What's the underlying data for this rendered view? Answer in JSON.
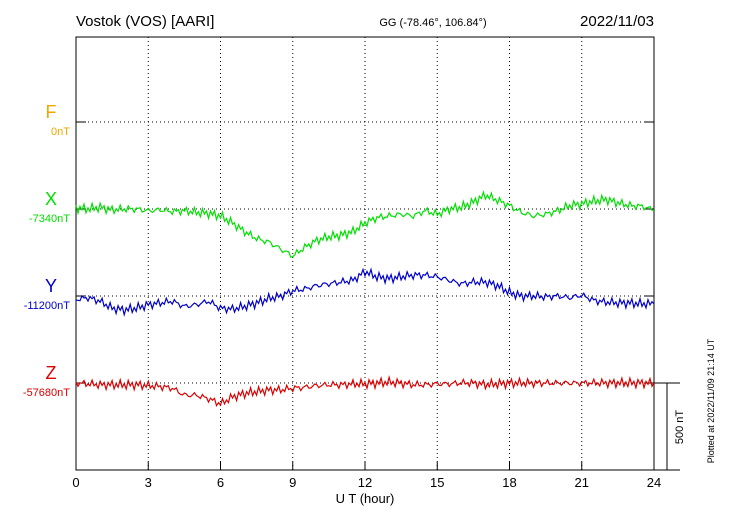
{
  "header": {
    "station": "Vostok (VOS)  [AARI]",
    "coords": "GG (-78.46°, 106.84°)",
    "date": "2022/11/03"
  },
  "side_note": "Plotted at 2022/11/09 21:14 UT",
  "scale_label": "500 nT",
  "colors": {
    "F": "#f0a800",
    "X": "#00e000",
    "Y": "#0000cc",
    "Z": "#dd0000",
    "grid": "#000000"
  },
  "chart_data": {
    "type": "line",
    "xlabel": "U T (hour)",
    "xlim": [
      0,
      24
    ],
    "xticks": [
      "0",
      "3",
      "6",
      "9",
      "12",
      "15",
      "18",
      "21",
      "24"
    ],
    "ylabel": "",
    "scale_nT": 500,
    "series": [
      {
        "name": "F",
        "baseline_label": "0nT",
        "baseline": 0,
        "x": [],
        "y": []
      },
      {
        "name": "X",
        "baseline_label": "-7340nT",
        "baseline": -7340,
        "x": [
          0,
          0.5,
          1,
          1.5,
          2,
          2.5,
          3,
          3.5,
          4,
          4.5,
          5,
          5.5,
          6,
          6.5,
          7,
          7.5,
          8,
          8.5,
          9,
          9.5,
          10,
          10.5,
          11,
          11.5,
          12,
          12.5,
          13,
          13.5,
          14,
          14.5,
          15,
          15.5,
          16,
          16.5,
          17,
          17.5,
          18,
          18.5,
          19,
          19.5,
          20,
          20.5,
          21,
          21.5,
          22,
          22.5,
          23,
          23.5,
          24
        ],
        "y": [
          -7335,
          -7340,
          -7330,
          -7345,
          -7340,
          -7340,
          -7350,
          -7345,
          -7355,
          -7350,
          -7360,
          -7365,
          -7380,
          -7420,
          -7470,
          -7510,
          -7530,
          -7570,
          -7610,
          -7560,
          -7520,
          -7500,
          -7490,
          -7470,
          -7420,
          -7390,
          -7380,
          -7370,
          -7380,
          -7350,
          -7370,
          -7340,
          -7330,
          -7300,
          -7260,
          -7290,
          -7320,
          -7360,
          -7380,
          -7370,
          -7350,
          -7320,
          -7310,
          -7295,
          -7285,
          -7305,
          -7320,
          -7325,
          -7345
        ]
      },
      {
        "name": "Y",
        "baseline_label": "-11200nT",
        "baseline": -11200,
        "x": [
          0,
          0.5,
          1,
          1.5,
          2,
          2.5,
          3,
          3.5,
          4,
          4.5,
          5,
          5.5,
          6,
          6.5,
          7,
          7.5,
          8,
          8.5,
          9,
          9.5,
          10,
          10.5,
          11,
          11.5,
          12,
          12.5,
          13,
          13.5,
          14,
          14.5,
          15,
          15.5,
          16,
          16.5,
          17,
          17.5,
          18,
          18.5,
          19,
          19.5,
          20,
          20.5,
          21,
          21.5,
          22,
          22.5,
          23,
          23.5,
          24
        ],
        "y": [
          -11220,
          -11210,
          -11230,
          -11270,
          -11280,
          -11270,
          -11250,
          -11240,
          -11230,
          -11260,
          -11250,
          -11230,
          -11270,
          -11275,
          -11260,
          -11240,
          -11215,
          -11200,
          -11170,
          -11160,
          -11140,
          -11130,
          -11120,
          -11110,
          -11060,
          -11090,
          -11100,
          -11090,
          -11080,
          -11080,
          -11090,
          -11110,
          -11130,
          -11120,
          -11120,
          -11140,
          -11180,
          -11200,
          -11200,
          -11205,
          -11200,
          -11210,
          -11195,
          -11225,
          -11235,
          -11240,
          -11240,
          -11245,
          -11245
        ]
      },
      {
        "name": "Z",
        "baseline_label": "-57680nT",
        "baseline": -57680,
        "x": [
          0,
          0.5,
          1,
          1.5,
          2,
          2.5,
          3,
          3.5,
          4,
          4.5,
          5,
          5.5,
          6,
          6.5,
          7,
          7.5,
          8,
          8.5,
          9,
          9.5,
          10,
          10.5,
          11,
          11.5,
          12,
          12.5,
          13,
          13.5,
          14,
          14.5,
          15,
          15.5,
          16,
          16.5,
          17,
          17.5,
          18,
          18.5,
          19,
          19.5,
          20,
          20.5,
          21,
          21.5,
          22,
          22.5,
          23,
          23.5,
          24
        ],
        "y": [
          -57680,
          -57685,
          -57690,
          -57690,
          -57690,
          -57690,
          -57695,
          -57700,
          -57710,
          -57750,
          -57750,
          -57770,
          -57800,
          -57760,
          -57740,
          -57730,
          -57720,
          -57720,
          -57710,
          -57705,
          -57695,
          -57690,
          -57690,
          -57685,
          -57685,
          -57680,
          -57675,
          -57680,
          -57690,
          -57690,
          -57685,
          -57685,
          -57680,
          -57680,
          -57690,
          -57685,
          -57680,
          -57680,
          -57680,
          -57680,
          -57680,
          -57680,
          -57680,
          -57680,
          -57680,
          -57680,
          -57680,
          -57680,
          -57680
        ]
      }
    ]
  }
}
